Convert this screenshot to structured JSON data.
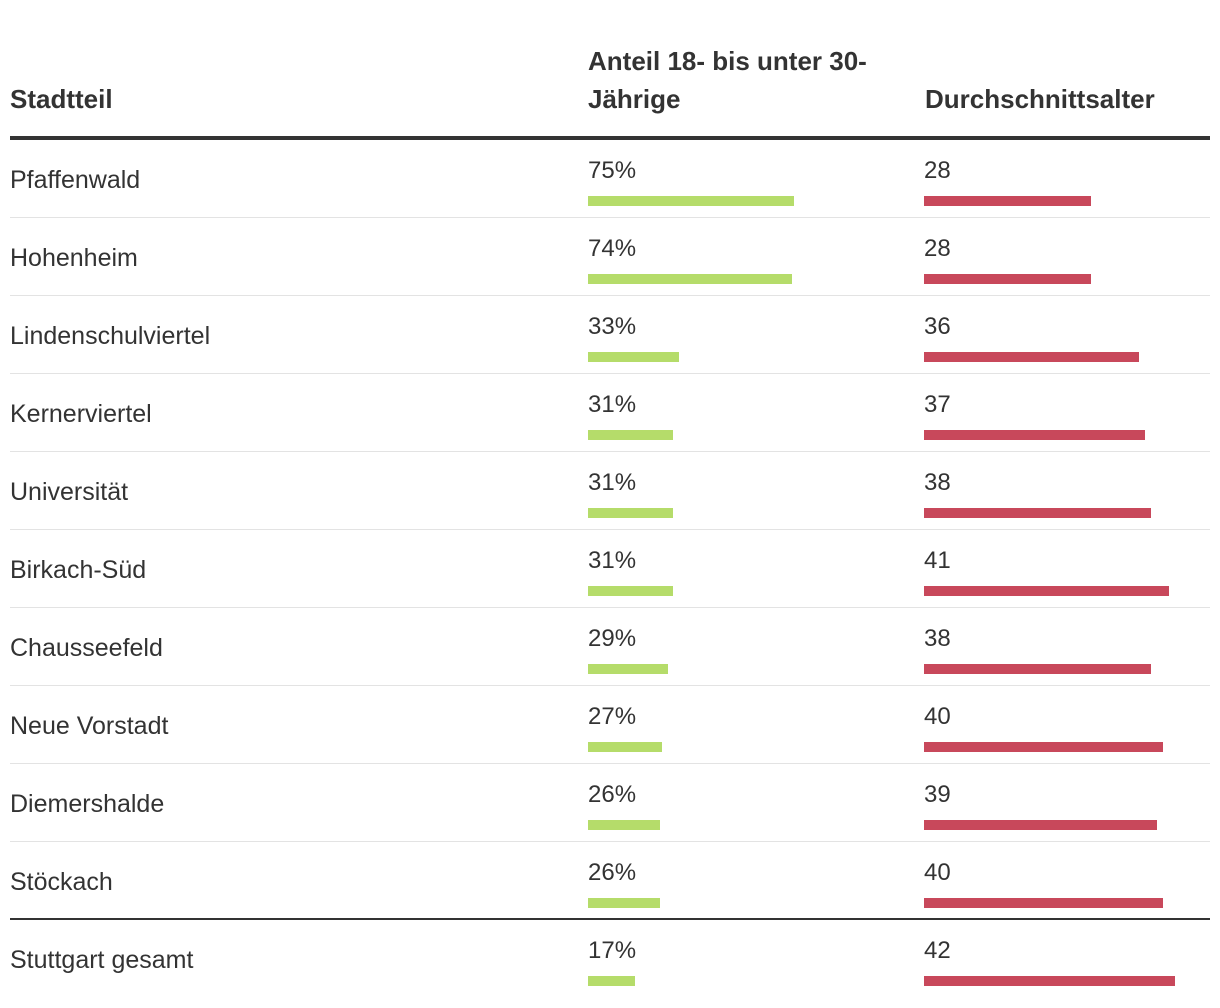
{
  "chart_data": {
    "type": "table",
    "columns": [
      "Stadtteil",
      "Anteil 18- bis unter 30-Jährige",
      "Durchschnittsalter"
    ],
    "header": {
      "district": "Stadtteil",
      "share": "Anteil 18- bis unter 30-Jährige",
      "age": "Durchschnittsalter"
    },
    "colors": {
      "share_bar": "#b5dc6a",
      "age_bar": "#c8485b"
    },
    "share_max": 100,
    "age_max": 50,
    "rows": [
      {
        "district": "Pfaffenwald",
        "share": 75,
        "share_label": "75%",
        "age": 28,
        "age_label": "28"
      },
      {
        "district": "Hohenheim",
        "share": 74,
        "share_label": "74%",
        "age": 28,
        "age_label": "28"
      },
      {
        "district": "Lindenschulviertel",
        "share": 33,
        "share_label": "33%",
        "age": 36,
        "age_label": "36"
      },
      {
        "district": "Kernerviertel",
        "share": 31,
        "share_label": "31%",
        "age": 37,
        "age_label": "37"
      },
      {
        "district": "Universität",
        "share": 31,
        "share_label": "31%",
        "age": 38,
        "age_label": "38"
      },
      {
        "district": "Birkach-Süd",
        "share": 31,
        "share_label": "31%",
        "age": 41,
        "age_label": "41"
      },
      {
        "district": "Chausseefeld",
        "share": 29,
        "share_label": "29%",
        "age": 38,
        "age_label": "38"
      },
      {
        "district": "Neue Vorstadt",
        "share": 27,
        "share_label": "27%",
        "age": 40,
        "age_label": "40"
      },
      {
        "district": "Diemershalde",
        "share": 26,
        "share_label": "26%",
        "age": 39,
        "age_label": "39"
      },
      {
        "district": "Stöckach",
        "share": 26,
        "share_label": "26%",
        "age": 40,
        "age_label": "40"
      }
    ],
    "total": {
      "district": "Stuttgart gesamt",
      "share": 17,
      "share_label": "17%",
      "age": 42,
      "age_label": "42"
    }
  }
}
